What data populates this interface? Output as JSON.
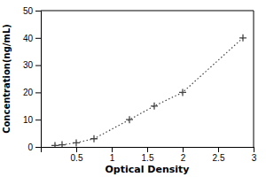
{
  "chart_data": {
    "type": "line",
    "x": [
      0.2,
      0.3,
      0.5,
      0.75,
      1.25,
      1.6,
      2.0,
      2.85
    ],
    "values": [
      0.5,
      0.8,
      1.5,
      3.0,
      10.0,
      15.0,
      20.0,
      40.0
    ],
    "xlabel": "Optical Density",
    "ylabel": "Concentration(ng/mL)",
    "xlim": [
      0.0,
      3.0
    ],
    "ylim": [
      0,
      50
    ],
    "xticks": [
      0.5,
      1.0,
      1.5,
      2.0,
      2.5,
      3.0
    ],
    "yticks": [
      0,
      10,
      20,
      30,
      40,
      50
    ],
    "color": "#444444",
    "marker": "plus",
    "line_style": "dotted"
  }
}
